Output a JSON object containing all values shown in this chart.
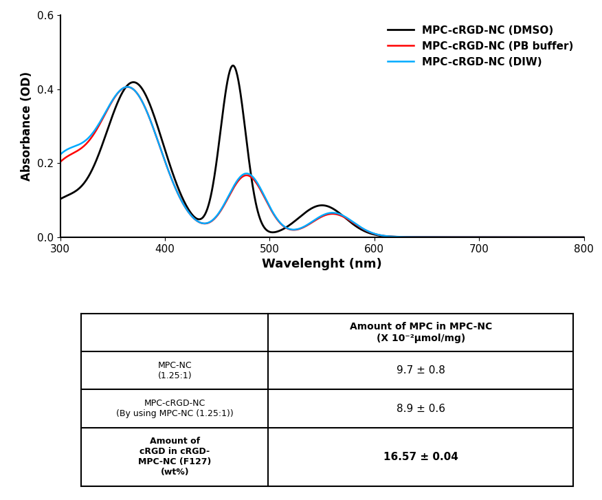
{
  "xlabel": "Wavelenght (nm)",
  "ylabel": "Absorbance (OD)",
  "xlim": [
    300,
    800
  ],
  "ylim": [
    0,
    0.6
  ],
  "yticks": [
    0,
    0.2,
    0.4,
    0.6
  ],
  "xticks": [
    300,
    400,
    500,
    600,
    700,
    800
  ],
  "legend_entries": [
    {
      "label": "MPC-cRGD-NC (DMSO)",
      "color": "#000000",
      "lw": 2.0
    },
    {
      "label": "MPC-cRGD-NC (PB buffer)",
      "color": "#ff0000",
      "lw": 1.8
    },
    {
      "label": "MPC-cRGD-NC (DIW)",
      "color": "#00aaff",
      "lw": 1.8
    }
  ],
  "table_col_header": "Amount of MPC in MPC-NC\n(X 10⁻²μmol/mg)",
  "table_rows": [
    {
      "label": "MPC-NC\n(1.25:1)",
      "label_bold": false,
      "value": "9.7 ± 0.8",
      "value_bold": false
    },
    {
      "label": "MPC-cRGD-NC\n(By using MPC-NC (1.25:1))",
      "label_bold": false,
      "value": "8.9 ± 0.6",
      "value_bold": false
    },
    {
      "label": "Amount of\ncRGD in cRGD-\nMPC-NC (F127)\n(wt%)",
      "label_bold": true,
      "value": "16.57 ± 0.04",
      "value_bold": true
    }
  ]
}
